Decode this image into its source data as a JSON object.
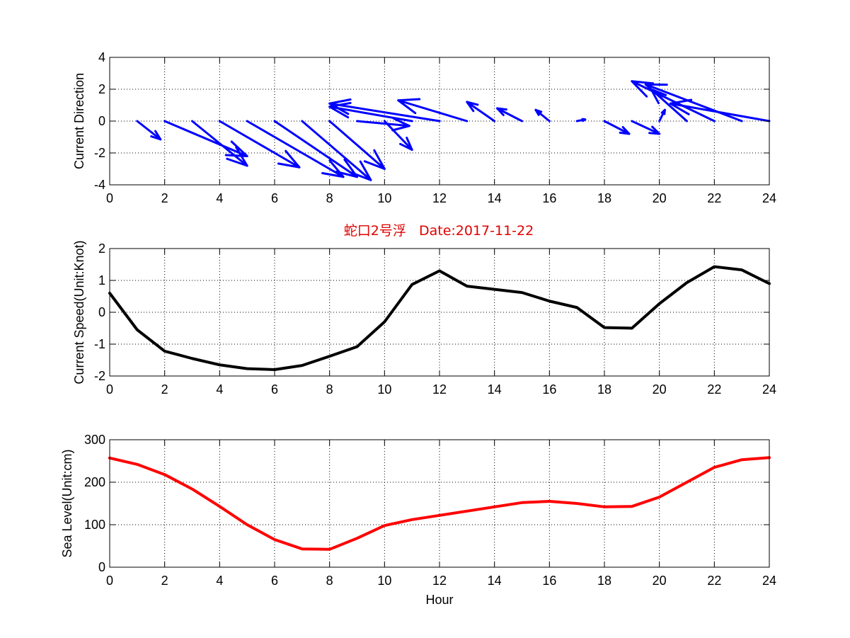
{
  "figure_title": "蛇口2号浮   Date:2017-11-22",
  "chart_data": [
    {
      "type": "quiver",
      "ylabel": "Current Direction",
      "xlabel": "",
      "xlim": [
        0,
        24
      ],
      "ylim": [
        -4,
        4
      ],
      "xticks": [
        0,
        2,
        4,
        6,
        8,
        10,
        12,
        14,
        16,
        18,
        20,
        22,
        24
      ],
      "yticks": [
        -4,
        -2,
        0,
        2,
        4
      ],
      "grid": true,
      "color": "#0000ff",
      "x": [
        1,
        2,
        3,
        4,
        5,
        6,
        7,
        8,
        9,
        10,
        11,
        12,
        13,
        14,
        15,
        16,
        17,
        18,
        19,
        20,
        21,
        22,
        23,
        24
      ],
      "u": [
        0.85,
        3.0,
        2.0,
        2.9,
        3.5,
        3.0,
        2.5,
        2.0,
        1.9,
        1.0,
        -3.0,
        -4.0,
        -2.5,
        -1.0,
        -0.9,
        -0.5,
        0.3,
        0.9,
        1.0,
        0.2,
        -1.3,
        -3.0,
        -3.5,
        -3.6
      ],
      "v": [
        -1.15,
        -2.2,
        -2.8,
        -2.9,
        -3.5,
        -3.5,
        -3.7,
        -3.0,
        -0.3,
        -1.8,
        0.9,
        1.1,
        1.3,
        1.2,
        0.8,
        0.7,
        0.1,
        -0.8,
        -0.8,
        0.7,
        2.0,
        2.5,
        2.3,
        1.1
      ]
    },
    {
      "type": "line",
      "ylabel": "Current Speed(Unit:Knot)",
      "xlabel": "",
      "xlim": [
        0,
        24
      ],
      "ylim": [
        -2,
        2
      ],
      "xticks": [
        0,
        2,
        4,
        6,
        8,
        10,
        12,
        14,
        16,
        18,
        20,
        22,
        24
      ],
      "yticks": [
        -2,
        -1,
        0,
        1,
        2
      ],
      "grid": true,
      "color": "#000000",
      "x": [
        0,
        1,
        2,
        3,
        4,
        5,
        6,
        7,
        8,
        9,
        10,
        11,
        12,
        13,
        14,
        15,
        16,
        17,
        18,
        19,
        20,
        21,
        22,
        23,
        24
      ],
      "y": [
        0.6,
        -0.55,
        -1.22,
        -1.45,
        -1.65,
        -1.77,
        -1.8,
        -1.67,
        -1.38,
        -1.08,
        -0.3,
        0.87,
        1.3,
        0.82,
        0.72,
        0.62,
        0.35,
        0.15,
        -0.48,
        -0.5,
        0.27,
        0.93,
        1.43,
        1.33,
        0.9
      ]
    },
    {
      "type": "line",
      "ylabel": "Sea Level(Unit:cm)",
      "xlabel": "Hour",
      "xlim": [
        0,
        24
      ],
      "ylim": [
        0,
        300
      ],
      "xticks": [
        0,
        2,
        4,
        6,
        8,
        10,
        12,
        14,
        16,
        18,
        20,
        22,
        24
      ],
      "yticks": [
        0,
        100,
        200,
        300
      ],
      "grid": true,
      "color": "#ff0000",
      "x": [
        0,
        1,
        2,
        3,
        4,
        5,
        6,
        7,
        8,
        9,
        10,
        11,
        12,
        13,
        14,
        15,
        16,
        17,
        18,
        19,
        20,
        21,
        22,
        23,
        24
      ],
      "y": [
        257,
        242,
        218,
        184,
        143,
        100,
        65,
        43,
        42,
        68,
        98,
        112,
        122,
        132,
        142,
        152,
        155,
        150,
        142,
        143,
        165,
        200,
        235,
        253,
        258
      ]
    }
  ]
}
